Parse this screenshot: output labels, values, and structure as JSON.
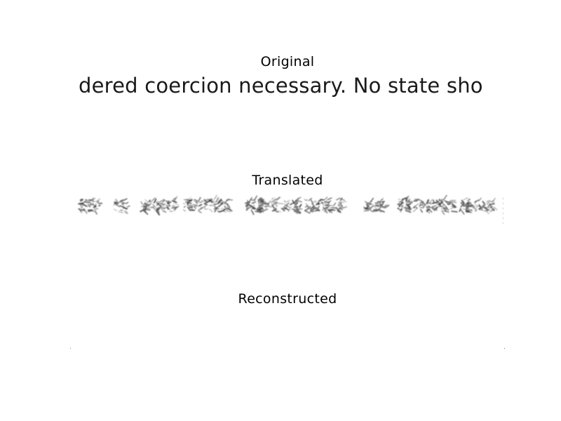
{
  "panels": {
    "original": {
      "title": "Original",
      "text": "dered coercion necessary. No state sho"
    },
    "translated": {
      "title": "Translated"
    },
    "reconstructed": {
      "title": "Reconstructed"
    }
  },
  "colors": {
    "background": "#ffffff",
    "text": "#000000",
    "ink": "#1a1a1a"
  }
}
